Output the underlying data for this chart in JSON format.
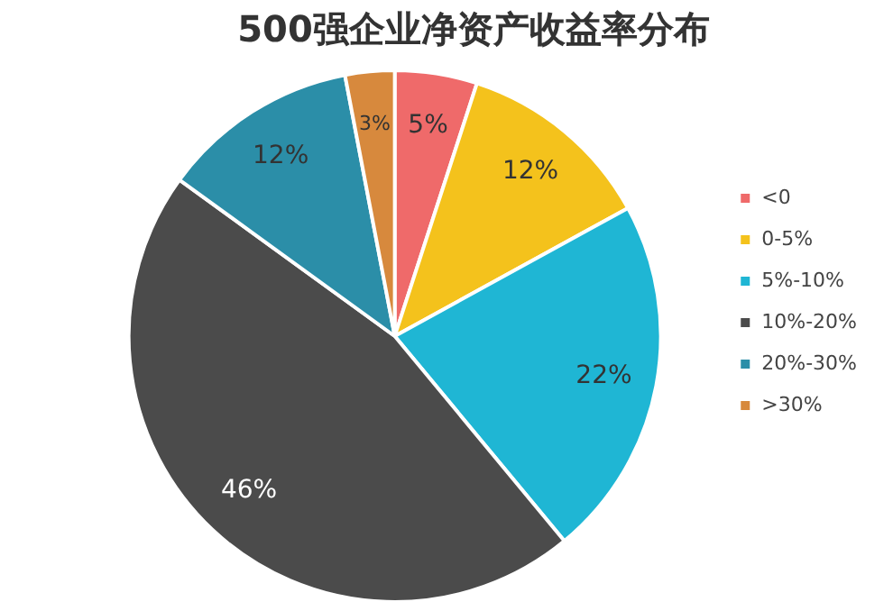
{
  "chart_data": {
    "type": "pie",
    "title": "500强企业净资产收益率分布",
    "categories": [
      "<0",
      "0-5%",
      "5%-10%",
      "10%-20%",
      "20%-30%",
      ">30%"
    ],
    "values": [
      5,
      12,
      22,
      46,
      12,
      3
    ],
    "colors": [
      "#ef6a6a",
      "#f4c21c",
      "#1fb6d4",
      "#4b4b4b",
      "#2b8ea8",
      "#d7893d"
    ],
    "value_labels": [
      "5%",
      "12%",
      "22%",
      "46%",
      "12%",
      "3%"
    ],
    "legend": "right"
  }
}
